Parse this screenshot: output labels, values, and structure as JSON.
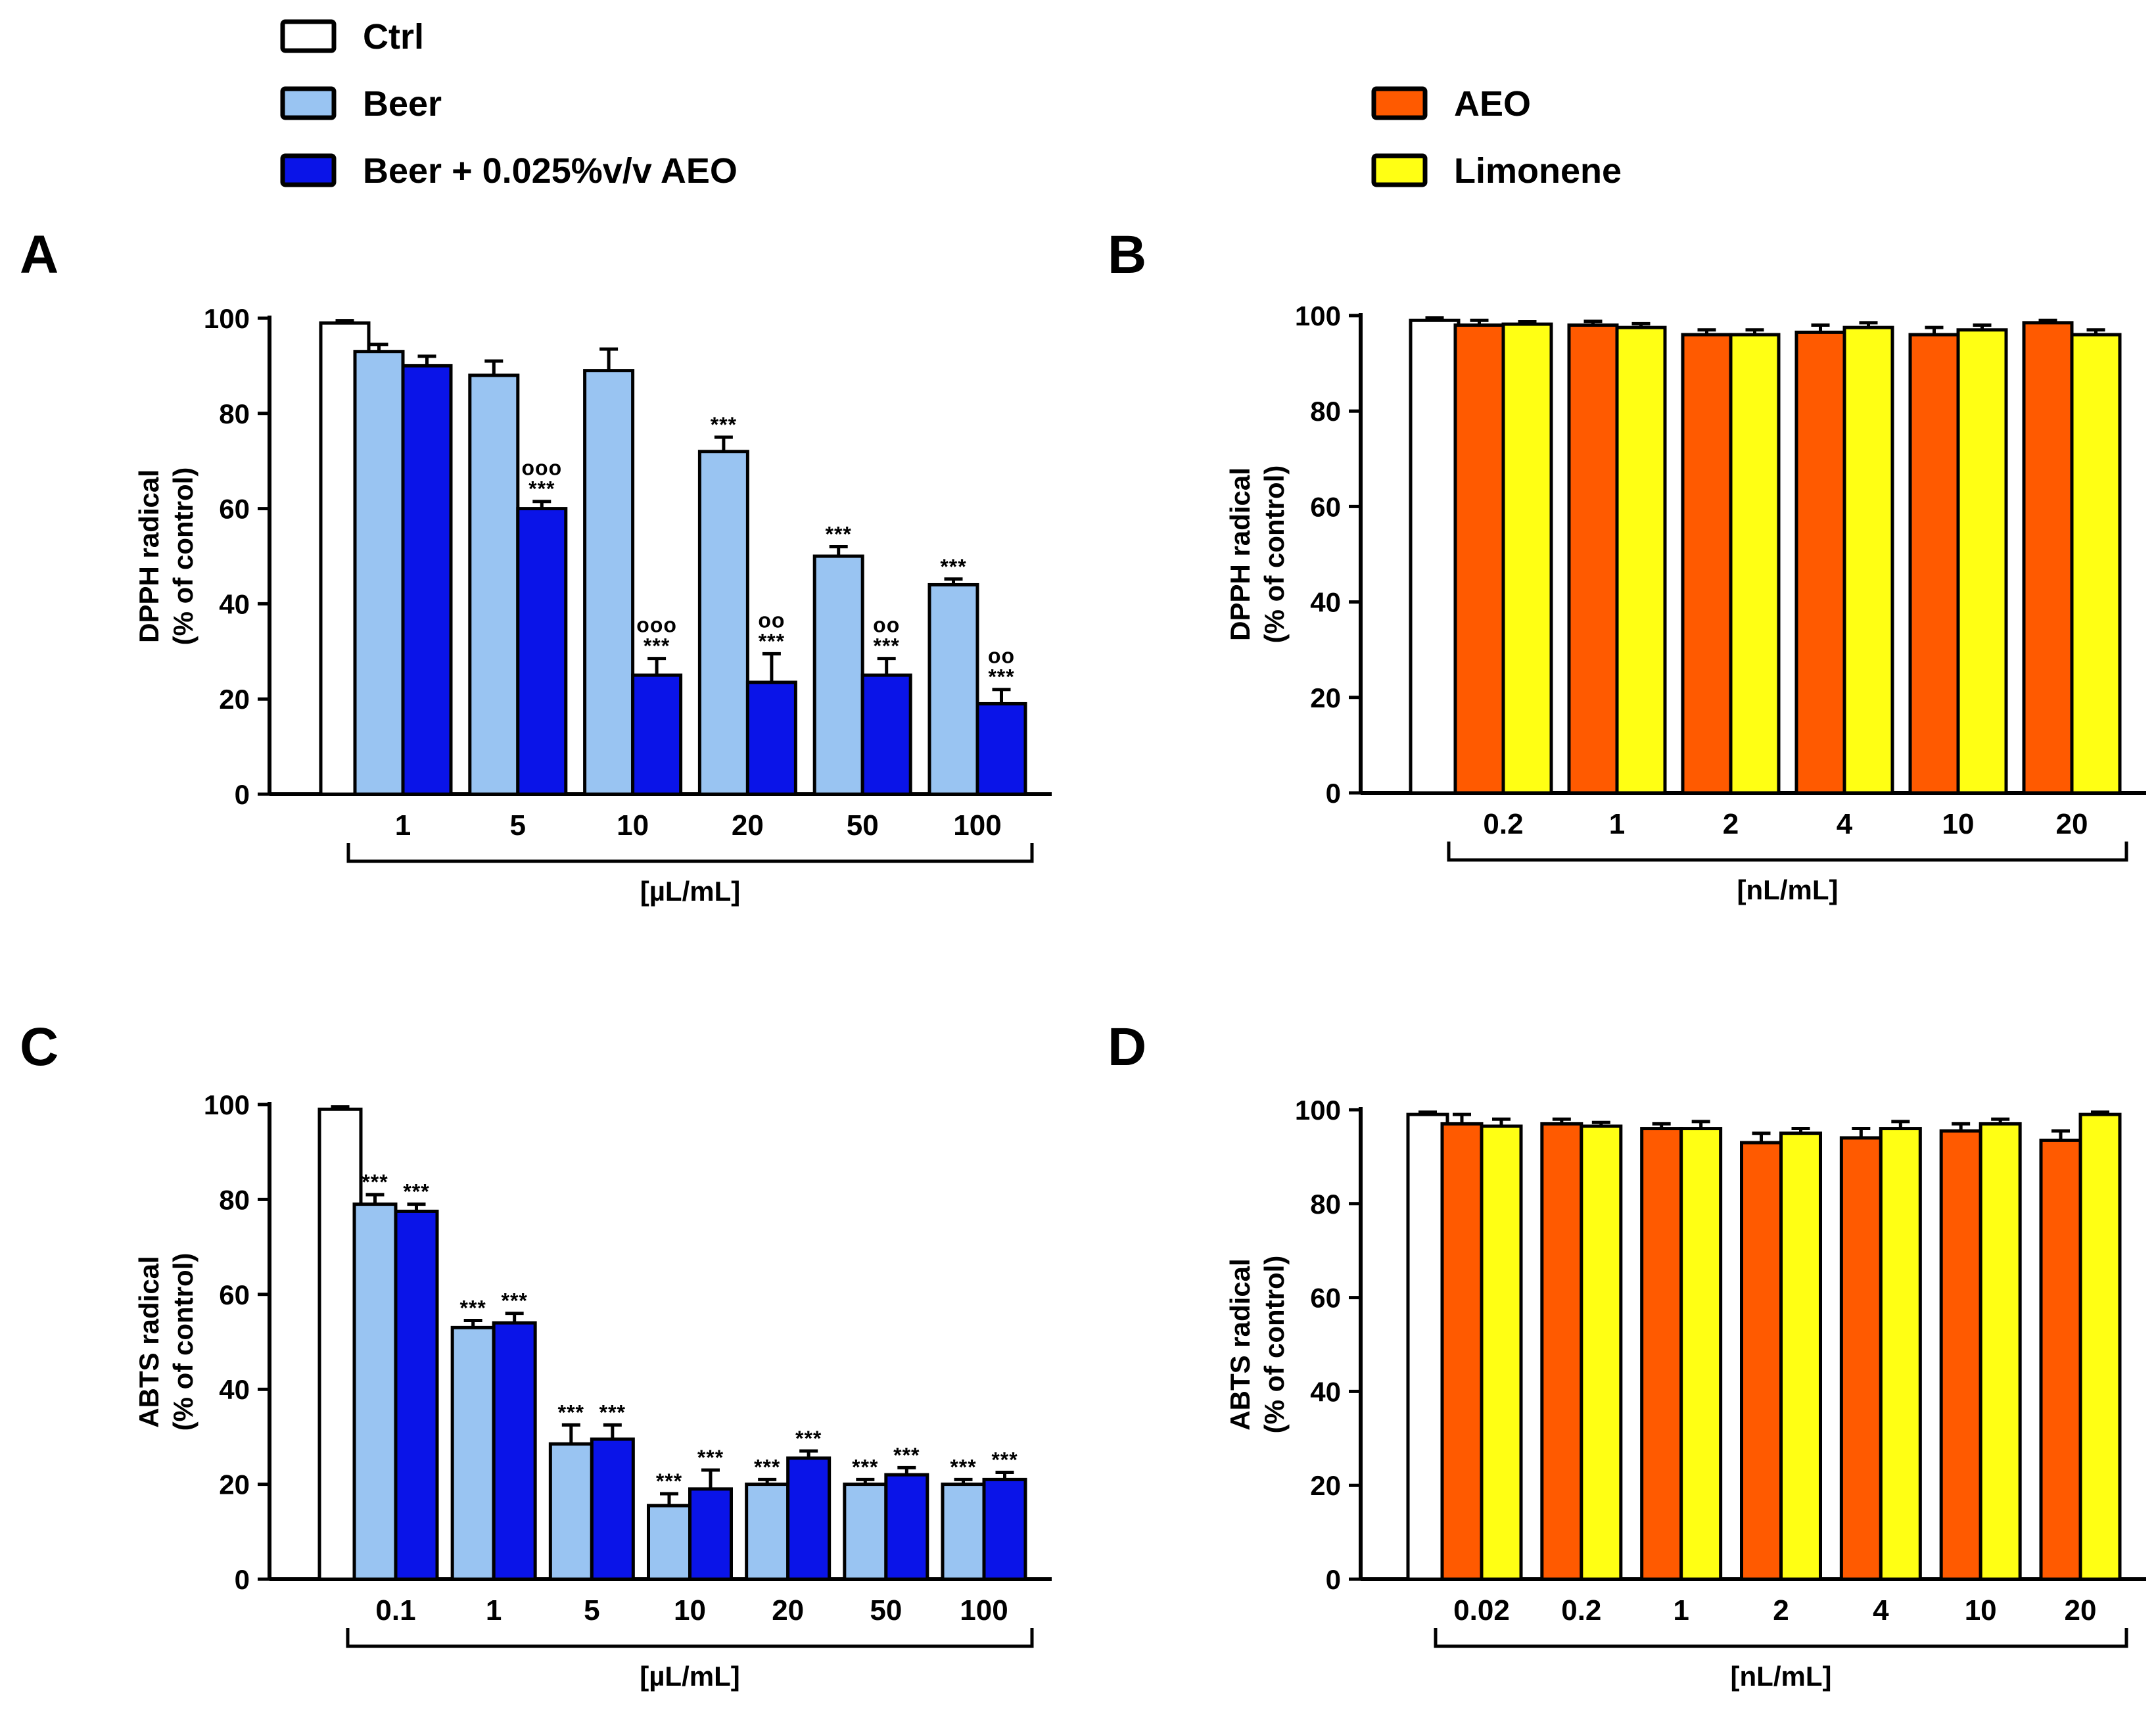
{
  "legend": {
    "left": [
      {
        "label": "Ctrl",
        "color": "#ffffff"
      },
      {
        "label": "Beer",
        "color": "#99c4f2"
      },
      {
        "label": "Beer + 0.025%v/v AEO",
        "color": "#0a14e8"
      }
    ],
    "right": [
      {
        "label": "AEO",
        "color": "#ff5a00"
      },
      {
        "label": "Limonene",
        "color": "#ffff14"
      }
    ]
  },
  "chart_data": [
    {
      "panel": "A",
      "type": "bar",
      "ylabel": [
        "DPPH radical",
        "(% of control)"
      ],
      "ylim": [
        0,
        100
      ],
      "yticks": [
        0,
        20,
        40,
        60,
        80,
        100
      ],
      "unit": "[µL/mL]",
      "control": {
        "name": "Ctrl",
        "value": 99,
        "error": 0.5
      },
      "categories": [
        "1",
        "5",
        "10",
        "20",
        "50",
        "100"
      ],
      "series": [
        {
          "name": "Beer",
          "color": "#99c4f2",
          "values": [
            93,
            88,
            89,
            72,
            50,
            44
          ],
          "errors": [
            1.5,
            3,
            4.5,
            3,
            2,
            1.2
          ],
          "annotations": [
            [],
            [],
            [],
            [
              "***"
            ],
            [
              "***"
            ],
            [
              "***"
            ]
          ]
        },
        {
          "name": "Beer + 0.025%v/v AEO",
          "color": "#0a14e8",
          "values": [
            90,
            60,
            25,
            23.5,
            25,
            19
          ],
          "errors": [
            2,
            1.5,
            3.5,
            6,
            3.5,
            3
          ],
          "annotations": [
            [],
            [
              "ooo",
              "***"
            ],
            [
              "ooo",
              "***"
            ],
            [
              "oo",
              "***"
            ],
            [
              "oo",
              "***"
            ],
            [
              "oo",
              "***"
            ]
          ]
        }
      ]
    },
    {
      "panel": "B",
      "type": "bar",
      "ylabel": [
        "DPPH radical",
        "(% of control)"
      ],
      "ylim": [
        0,
        100
      ],
      "yticks": [
        0,
        20,
        40,
        60,
        80,
        100
      ],
      "unit": "[nL/mL]",
      "control": {
        "name": "Ctrl",
        "value": 99,
        "error": 0.5
      },
      "categories": [
        "0.2",
        "1",
        "2",
        "4",
        "10",
        "20"
      ],
      "series": [
        {
          "name": "AEO",
          "color": "#ff5a00",
          "values": [
            98,
            98,
            96,
            96.5,
            96,
            98.5
          ],
          "errors": [
            1,
            0.8,
            1,
            1.5,
            1.5,
            0.5
          ],
          "annotations": [
            [],
            [],
            [],
            [],
            [],
            []
          ]
        },
        {
          "name": "Limonene",
          "color": "#ffff14",
          "values": [
            98.2,
            97.5,
            96,
            97.5,
            97,
            96
          ],
          "errors": [
            0.5,
            0.8,
            1,
            1,
            1,
            1
          ],
          "annotations": [
            [],
            [],
            [],
            [],
            [],
            []
          ]
        }
      ]
    },
    {
      "panel": "C",
      "type": "bar",
      "ylabel": [
        "ABTS radical",
        "(% of control)"
      ],
      "ylim": [
        0,
        100
      ],
      "yticks": [
        0,
        20,
        40,
        60,
        80,
        100
      ],
      "unit": "[µL/mL]",
      "control": {
        "name": "Ctrl",
        "value": 99,
        "error": 0.5
      },
      "categories": [
        "0.1",
        "1",
        "5",
        "10",
        "20",
        "50",
        "100"
      ],
      "series": [
        {
          "name": "Beer",
          "color": "#99c4f2",
          "values": [
            79,
            53,
            28.5,
            15.5,
            20,
            20,
            20
          ],
          "errors": [
            2,
            1.5,
            4,
            2.5,
            1,
            1,
            1
          ],
          "annotations": [
            [
              "***"
            ],
            [
              "***"
            ],
            [
              "***"
            ],
            [
              "***"
            ],
            [
              "***"
            ],
            [
              "***"
            ],
            [
              "***"
            ]
          ]
        },
        {
          "name": "Beer + 0.025%v/v AEO",
          "color": "#0a14e8",
          "values": [
            77.5,
            54,
            29.5,
            19,
            25.5,
            22,
            21
          ],
          "errors": [
            1.5,
            2,
            3,
            4,
            1.5,
            1.5,
            1.5
          ],
          "annotations": [
            [
              "***"
            ],
            [
              "***"
            ],
            [
              "***"
            ],
            [
              "***"
            ],
            [
              "***"
            ],
            [
              "***"
            ],
            [
              "***"
            ]
          ]
        }
      ]
    },
    {
      "panel": "D",
      "type": "bar",
      "ylabel": [
        "ABTS radical",
        "(% of control)"
      ],
      "ylim": [
        0,
        100
      ],
      "yticks": [
        0,
        20,
        40,
        60,
        80,
        100
      ],
      "unit": "[nL/mL]",
      "control": {
        "name": "Ctrl",
        "value": 99,
        "error": 0.5
      },
      "categories": [
        "0.02",
        "0.2",
        "1",
        "2",
        "4",
        "10",
        "20"
      ],
      "series": [
        {
          "name": "AEO",
          "color": "#ff5a00",
          "values": [
            97,
            97,
            96,
            93,
            94,
            95.5,
            93.5
          ],
          "errors": [
            2,
            1,
            1,
            2,
            2,
            1.5,
            2
          ],
          "annotations": [
            [],
            [],
            [],
            [],
            [],
            [],
            []
          ]
        },
        {
          "name": "Limonene",
          "color": "#ffff14",
          "values": [
            96.5,
            96.5,
            96,
            95,
            96,
            97,
            99
          ],
          "errors": [
            1.5,
            0.8,
            1.5,
            1,
            1.5,
            1,
            0.5
          ],
          "annotations": [
            [],
            [],
            [],
            [],
            [],
            [],
            []
          ]
        }
      ]
    }
  ]
}
